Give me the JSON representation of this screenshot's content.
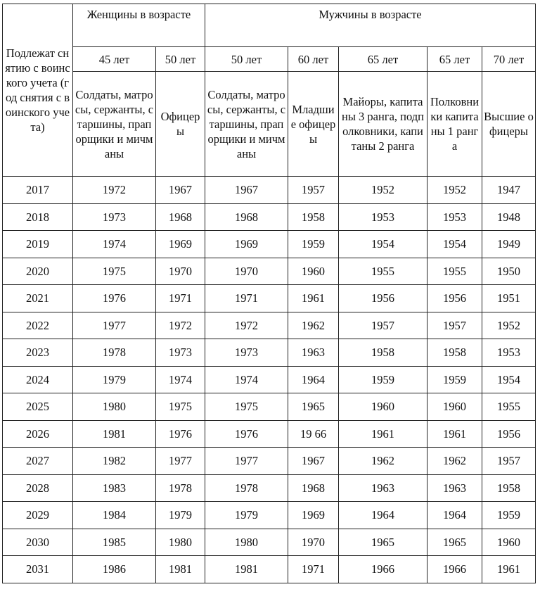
{
  "header": {
    "first_col": "Подлежат снятию с воинского учета (год снятия с воинского учета)",
    "women_group": "Женщины в возрасте",
    "men_group": "Мужчины в возрасте",
    "ages": [
      "45 лет",
      "50 лет",
      "50 лет",
      "60 лет",
      "65 лет",
      "65 лет",
      "70 лет"
    ],
    "categories": [
      "Солдаты, матросы, сержанты, старшины, прапорщики и мичманы",
      "Офицеры",
      "Солдаты, матросы, сержанты, старшины, прапорщики и мичманы",
      "Младшие офицеры",
      "Майоры, капитаны 3 ранга, подполковники, капитаны 2 ранга",
      "Полковники капитаны 1 ранга",
      "Высшие офицеры"
    ]
  },
  "rows": [
    [
      "2017",
      "1972",
      "1967",
      "1967",
      "1957",
      "1952",
      "1952",
      "1947"
    ],
    [
      "2018",
      "1973",
      "1968",
      "1968",
      "1958",
      "1953",
      "1953",
      "1948"
    ],
    [
      "2019",
      "1974",
      "1969",
      "1969",
      "1959",
      "1954",
      "1954",
      "1949"
    ],
    [
      "2020",
      "1975",
      "1970",
      "1970",
      "1960",
      "1955",
      "1955",
      "1950"
    ],
    [
      "2021",
      "1976",
      "1971",
      "1971",
      "1961",
      "1956",
      "1956",
      "1951"
    ],
    [
      "2022",
      "1977",
      "1972",
      "1972",
      "1962",
      "1957",
      "1957",
      "1952"
    ],
    [
      "2023",
      "1978",
      "1973",
      "1973",
      "1963",
      "1958",
      "1958",
      "1953"
    ],
    [
      "2024",
      "1979",
      "1974",
      "1974",
      "1964",
      "1959",
      "1959",
      "1954"
    ],
    [
      "2025",
      "1980",
      "1975",
      "1975",
      "1965",
      "1960",
      "1960",
      "1955"
    ],
    [
      "2026",
      "1981",
      "1976",
      "1976",
      "19 66",
      "1961",
      "1961",
      "1956"
    ],
    [
      "2027",
      "1982",
      "1977",
      "1977",
      "1967",
      "1962",
      "1962",
      "1957"
    ],
    [
      "2028",
      "1983",
      "1978",
      "1978",
      "1968",
      "1963",
      "1963",
      "1958"
    ],
    [
      "2029",
      "1984",
      "1979",
      "1979",
      "1969",
      "1964",
      "1964",
      "1959"
    ],
    [
      "2030",
      "1985",
      "1980",
      "1980",
      "1970",
      "1965",
      "1965",
      "1960"
    ],
    [
      "2031",
      "1986",
      "1981",
      "1981",
      "1971",
      "1966",
      "1966",
      "1961"
    ]
  ]
}
